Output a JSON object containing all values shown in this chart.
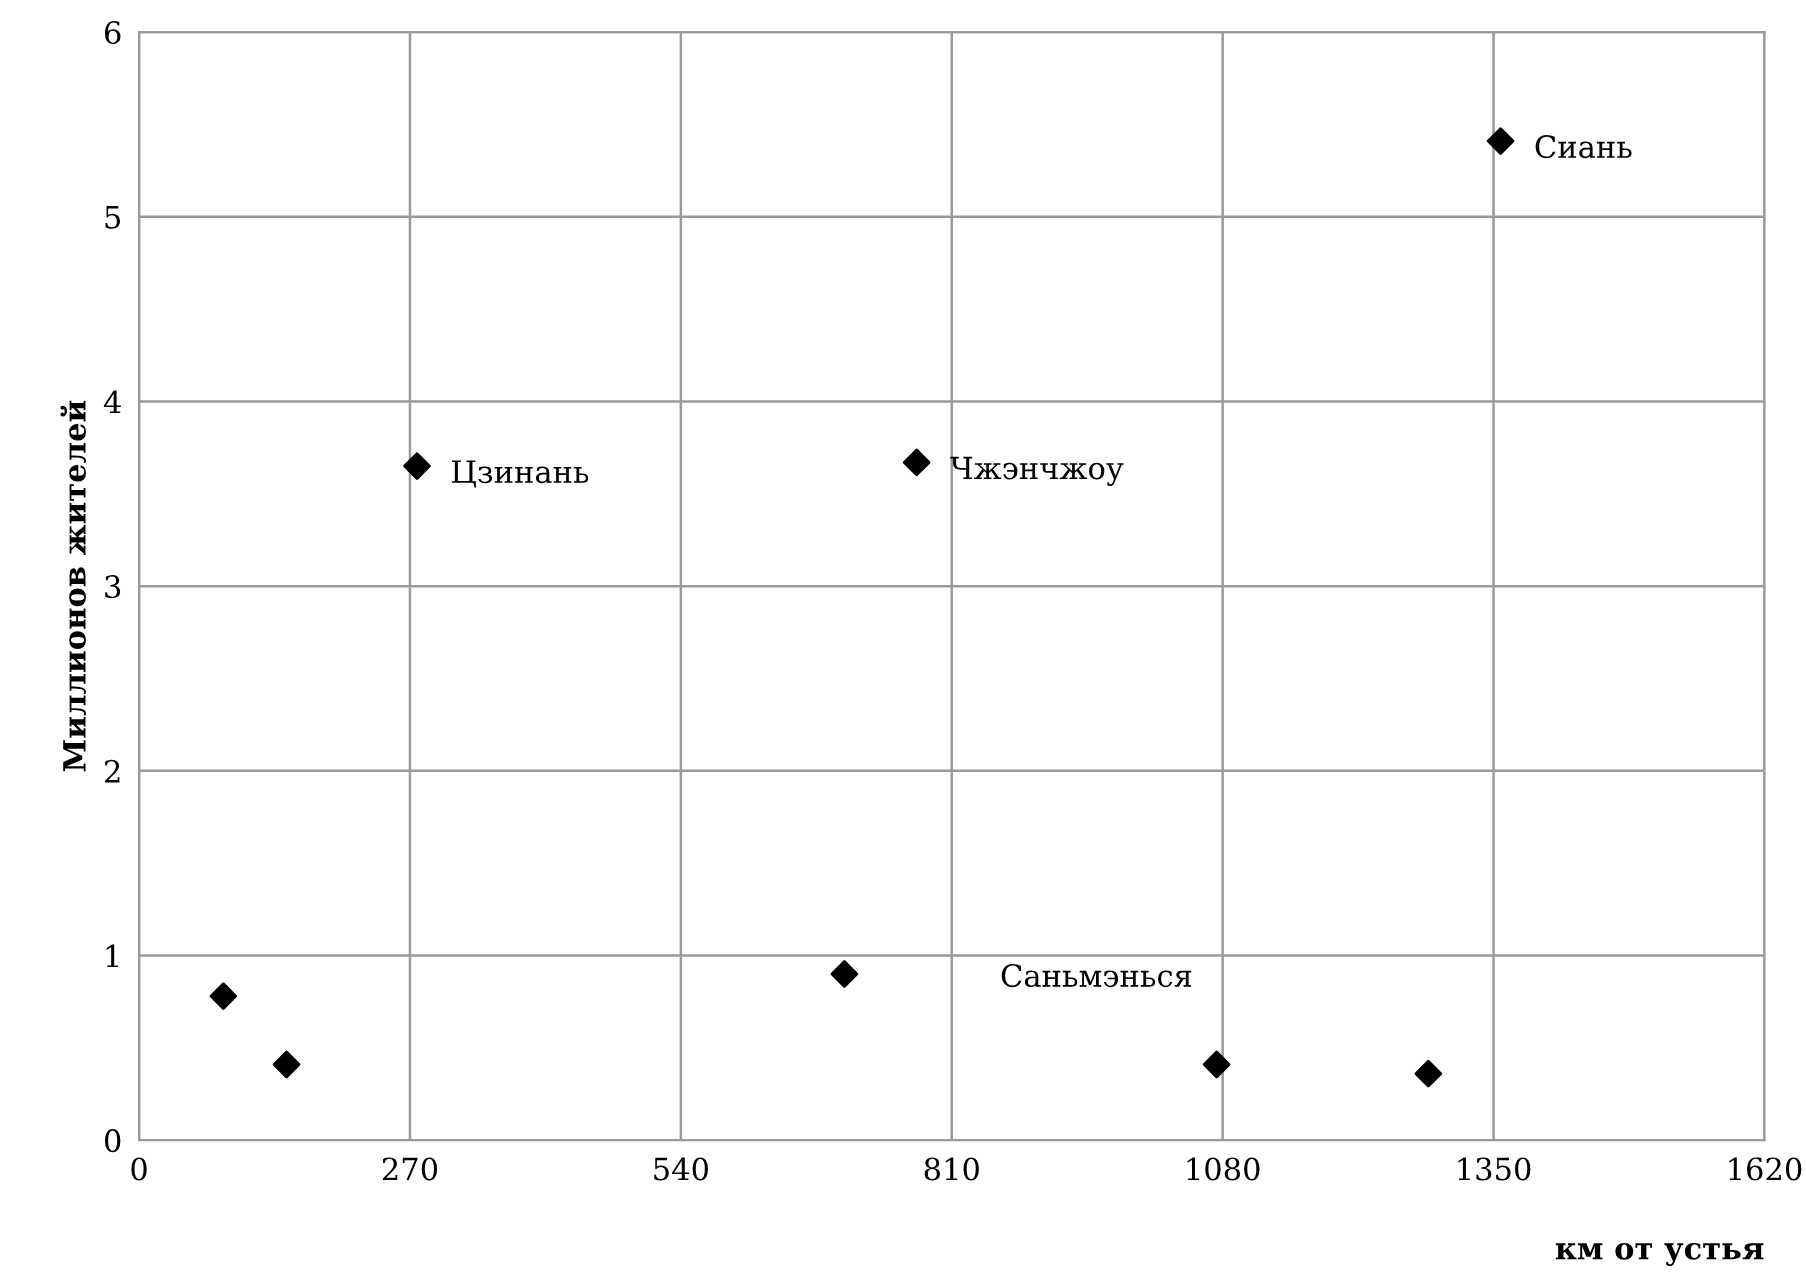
{
  "chart_data": {
    "type": "scatter",
    "xlabel": "км от устья",
    "ylabel": "Миллионов жителей",
    "x": [
      84,
      147,
      277,
      703,
      775,
      1074,
      1285,
      1357
    ],
    "series": [
      {
        "color": "#000000",
        "values": [
          0.78,
          0.41,
          3.65,
          0.9,
          3.67,
          0.41,
          0.36,
          5.41
        ]
      }
    ],
    "xlim": [
      0,
      1620
    ],
    "xticks": [
      0,
      270,
      540,
      810,
      1080,
      1350,
      1620
    ],
    "ylim": [
      0,
      6
    ],
    "yticks": [
      0,
      1,
      2,
      3,
      4,
      5,
      6
    ],
    "grid": true,
    "marker": "diamond",
    "annotations": [
      {
        "text": "Цзинань",
        "x": 277,
        "y": 3.65
      },
      {
        "text": "Чжэнчжоу",
        "x": 775,
        "y": 3.67
      },
      {
        "text": "Саньмэнься",
        "x": 1074,
        "y": 0.41
      },
      {
        "text": "Сиань",
        "x": 1357,
        "y": 5.41
      }
    ]
  }
}
